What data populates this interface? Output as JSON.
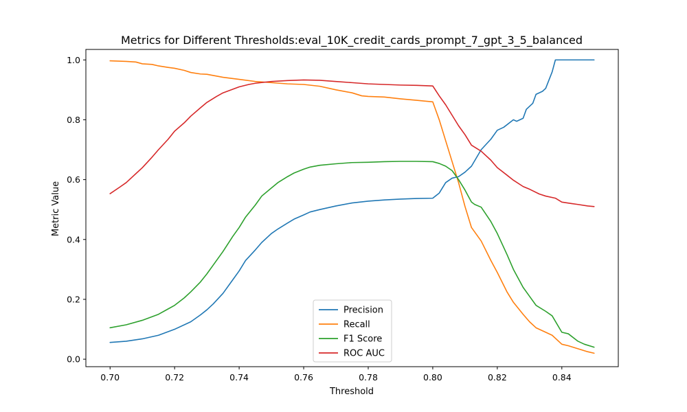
{
  "chart_data": {
    "type": "line",
    "title": "Metrics for Different Thresholds:eval_10K_credit_cards_prompt_7_gpt_3_5_balanced",
    "xlabel": "Threshold",
    "ylabel": "Metric Value",
    "xlim": [
      0.6925,
      0.8575
    ],
    "ylim": [
      -0.025,
      1.035
    ],
    "xticks": [
      0.7,
      0.72,
      0.74,
      0.76,
      0.78,
      0.8,
      0.82,
      0.84
    ],
    "xtick_labels": [
      "0.70",
      "0.72",
      "0.74",
      "0.76",
      "0.78",
      "0.80",
      "0.82",
      "0.84"
    ],
    "yticks": [
      0.0,
      0.2,
      0.4,
      0.6,
      0.8,
      1.0
    ],
    "ytick_labels": [
      "0.0",
      "0.2",
      "0.4",
      "0.6",
      "0.8",
      "1.0"
    ],
    "grid": false,
    "legend_position": "lower-center",
    "series": [
      {
        "name": "Precision",
        "color": "#1f77b4",
        "points": [
          [
            0.7,
            0.056
          ],
          [
            0.705,
            0.06
          ],
          [
            0.71,
            0.068
          ],
          [
            0.715,
            0.08
          ],
          [
            0.72,
            0.1
          ],
          [
            0.725,
            0.125
          ],
          [
            0.728,
            0.148
          ],
          [
            0.73,
            0.165
          ],
          [
            0.732,
            0.185
          ],
          [
            0.735,
            0.22
          ],
          [
            0.738,
            0.265
          ],
          [
            0.74,
            0.295
          ],
          [
            0.742,
            0.33
          ],
          [
            0.745,
            0.365
          ],
          [
            0.747,
            0.39
          ],
          [
            0.75,
            0.42
          ],
          [
            0.752,
            0.435
          ],
          [
            0.755,
            0.455
          ],
          [
            0.757,
            0.468
          ],
          [
            0.76,
            0.482
          ],
          [
            0.762,
            0.492
          ],
          [
            0.765,
            0.5
          ],
          [
            0.77,
            0.512
          ],
          [
            0.775,
            0.522
          ],
          [
            0.78,
            0.528
          ],
          [
            0.785,
            0.532
          ],
          [
            0.79,
            0.535
          ],
          [
            0.795,
            0.537
          ],
          [
            0.8,
            0.538
          ],
          [
            0.802,
            0.555
          ],
          [
            0.804,
            0.59
          ],
          [
            0.806,
            0.605
          ],
          [
            0.808,
            0.61
          ],
          [
            0.81,
            0.625
          ],
          [
            0.812,
            0.645
          ],
          [
            0.815,
            0.7
          ],
          [
            0.818,
            0.735
          ],
          [
            0.82,
            0.765
          ],
          [
            0.822,
            0.775
          ],
          [
            0.825,
            0.8
          ],
          [
            0.826,
            0.795
          ],
          [
            0.828,
            0.805
          ],
          [
            0.829,
            0.835
          ],
          [
            0.831,
            0.855
          ],
          [
            0.832,
            0.885
          ],
          [
            0.834,
            0.895
          ],
          [
            0.835,
            0.905
          ],
          [
            0.837,
            0.96
          ],
          [
            0.838,
            1.0
          ],
          [
            0.84,
            1.0
          ],
          [
            0.845,
            1.0
          ],
          [
            0.85,
            1.0
          ]
        ]
      },
      {
        "name": "Recall",
        "color": "#ff7f0e",
        "points": [
          [
            0.7,
            0.997
          ],
          [
            0.705,
            0.995
          ],
          [
            0.708,
            0.993
          ],
          [
            0.71,
            0.987
          ],
          [
            0.713,
            0.985
          ],
          [
            0.715,
            0.98
          ],
          [
            0.718,
            0.975
          ],
          [
            0.72,
            0.972
          ],
          [
            0.723,
            0.965
          ],
          [
            0.725,
            0.958
          ],
          [
            0.728,
            0.953
          ],
          [
            0.73,
            0.952
          ],
          [
            0.735,
            0.942
          ],
          [
            0.74,
            0.935
          ],
          [
            0.745,
            0.928
          ],
          [
            0.75,
            0.924
          ],
          [
            0.755,
            0.92
          ],
          [
            0.76,
            0.918
          ],
          [
            0.765,
            0.912
          ],
          [
            0.77,
            0.9
          ],
          [
            0.775,
            0.89
          ],
          [
            0.778,
            0.88
          ],
          [
            0.78,
            0.878
          ],
          [
            0.785,
            0.876
          ],
          [
            0.79,
            0.87
          ],
          [
            0.795,
            0.865
          ],
          [
            0.798,
            0.862
          ],
          [
            0.8,
            0.86
          ],
          [
            0.802,
            0.8
          ],
          [
            0.804,
            0.73
          ],
          [
            0.806,
            0.66
          ],
          [
            0.808,
            0.59
          ],
          [
            0.81,
            0.51
          ],
          [
            0.812,
            0.44
          ],
          [
            0.815,
            0.395
          ],
          [
            0.818,
            0.33
          ],
          [
            0.82,
            0.29
          ],
          [
            0.823,
            0.225
          ],
          [
            0.825,
            0.19
          ],
          [
            0.828,
            0.15
          ],
          [
            0.83,
            0.125
          ],
          [
            0.832,
            0.105
          ],
          [
            0.835,
            0.09
          ],
          [
            0.837,
            0.08
          ],
          [
            0.84,
            0.05
          ],
          [
            0.842,
            0.045
          ],
          [
            0.845,
            0.035
          ],
          [
            0.848,
            0.025
          ],
          [
            0.85,
            0.02
          ]
        ]
      },
      {
        "name": "F1 Score",
        "color": "#2ca02c",
        "points": [
          [
            0.7,
            0.105
          ],
          [
            0.705,
            0.115
          ],
          [
            0.71,
            0.13
          ],
          [
            0.715,
            0.15
          ],
          [
            0.718,
            0.168
          ],
          [
            0.72,
            0.18
          ],
          [
            0.723,
            0.205
          ],
          [
            0.725,
            0.225
          ],
          [
            0.728,
            0.258
          ],
          [
            0.73,
            0.285
          ],
          [
            0.732,
            0.315
          ],
          [
            0.735,
            0.36
          ],
          [
            0.738,
            0.41
          ],
          [
            0.74,
            0.44
          ],
          [
            0.742,
            0.475
          ],
          [
            0.745,
            0.515
          ],
          [
            0.747,
            0.545
          ],
          [
            0.75,
            0.572
          ],
          [
            0.752,
            0.59
          ],
          [
            0.755,
            0.61
          ],
          [
            0.757,
            0.622
          ],
          [
            0.76,
            0.635
          ],
          [
            0.762,
            0.642
          ],
          [
            0.765,
            0.648
          ],
          [
            0.77,
            0.653
          ],
          [
            0.775,
            0.657
          ],
          [
            0.78,
            0.658
          ],
          [
            0.785,
            0.66
          ],
          [
            0.79,
            0.661
          ],
          [
            0.795,
            0.661
          ],
          [
            0.8,
            0.66
          ],
          [
            0.802,
            0.654
          ],
          [
            0.804,
            0.645
          ],
          [
            0.806,
            0.63
          ],
          [
            0.808,
            0.6
          ],
          [
            0.81,
            0.565
          ],
          [
            0.811,
            0.545
          ],
          [
            0.812,
            0.525
          ],
          [
            0.813,
            0.517
          ],
          [
            0.815,
            0.508
          ],
          [
            0.818,
            0.46
          ],
          [
            0.82,
            0.42
          ],
          [
            0.823,
            0.35
          ],
          [
            0.825,
            0.3
          ],
          [
            0.828,
            0.24
          ],
          [
            0.83,
            0.21
          ],
          [
            0.832,
            0.18
          ],
          [
            0.835,
            0.16
          ],
          [
            0.837,
            0.145
          ],
          [
            0.84,
            0.09
          ],
          [
            0.842,
            0.085
          ],
          [
            0.845,
            0.06
          ],
          [
            0.847,
            0.05
          ],
          [
            0.85,
            0.04
          ]
        ]
      },
      {
        "name": "ROC AUC",
        "color": "#d62728",
        "points": [
          [
            0.7,
            0.553
          ],
          [
            0.703,
            0.575
          ],
          [
            0.705,
            0.59
          ],
          [
            0.708,
            0.62
          ],
          [
            0.71,
            0.64
          ],
          [
            0.713,
            0.675
          ],
          [
            0.715,
            0.7
          ],
          [
            0.718,
            0.735
          ],
          [
            0.72,
            0.762
          ],
          [
            0.723,
            0.79
          ],
          [
            0.725,
            0.812
          ],
          [
            0.728,
            0.84
          ],
          [
            0.73,
            0.858
          ],
          [
            0.733,
            0.878
          ],
          [
            0.735,
            0.89
          ],
          [
            0.738,
            0.902
          ],
          [
            0.74,
            0.91
          ],
          [
            0.743,
            0.918
          ],
          [
            0.745,
            0.922
          ],
          [
            0.75,
            0.928
          ],
          [
            0.755,
            0.931
          ],
          [
            0.76,
            0.933
          ],
          [
            0.765,
            0.932
          ],
          [
            0.77,
            0.928
          ],
          [
            0.775,
            0.924
          ],
          [
            0.78,
            0.92
          ],
          [
            0.785,
            0.918
          ],
          [
            0.79,
            0.916
          ],
          [
            0.795,
            0.915
          ],
          [
            0.8,
            0.913
          ],
          [
            0.802,
            0.88
          ],
          [
            0.804,
            0.85
          ],
          [
            0.806,
            0.815
          ],
          [
            0.808,
            0.78
          ],
          [
            0.81,
            0.75
          ],
          [
            0.812,
            0.715
          ],
          [
            0.815,
            0.695
          ],
          [
            0.818,
            0.665
          ],
          [
            0.82,
            0.64
          ],
          [
            0.823,
            0.615
          ],
          [
            0.825,
            0.598
          ],
          [
            0.828,
            0.577
          ],
          [
            0.83,
            0.568
          ],
          [
            0.833,
            0.552
          ],
          [
            0.835,
            0.545
          ],
          [
            0.838,
            0.538
          ],
          [
            0.84,
            0.525
          ],
          [
            0.843,
            0.52
          ],
          [
            0.845,
            0.517
          ],
          [
            0.848,
            0.512
          ],
          [
            0.85,
            0.51
          ]
        ]
      }
    ]
  }
}
